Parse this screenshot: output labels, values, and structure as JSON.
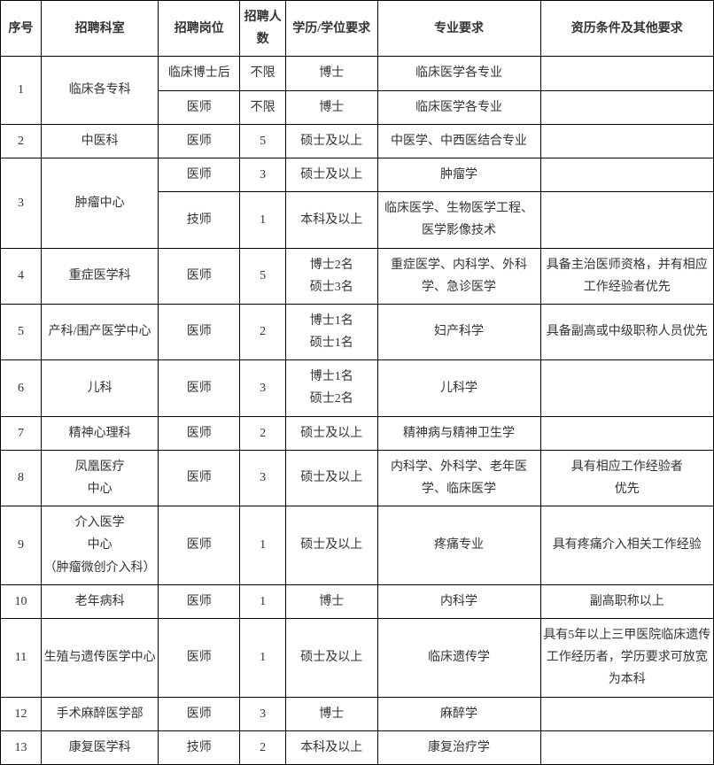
{
  "headers": {
    "seq": "序号",
    "dept": "招聘科室",
    "post": "招聘岗位",
    "num": "招聘人数",
    "edu": "学历/学位要求",
    "major": "专业要求",
    "other": "资历条件及其他要求"
  },
  "r1": {
    "seq": "1",
    "dept": "临床各专科",
    "post": "临床博士后",
    "num": "不限",
    "edu": "博士",
    "major": "临床医学各专业",
    "other": ""
  },
  "r1b": {
    "post": "医师",
    "num": "不限",
    "edu": "博士",
    "major": "临床医学各专业",
    "other": ""
  },
  "r2": {
    "seq": "2",
    "dept": "中医科",
    "post": "医师",
    "num": "5",
    "edu": "硕士及以上",
    "major": "中医学、中西医结合专业",
    "other": ""
  },
  "r3": {
    "seq": "3",
    "dept": "肿瘤中心",
    "post": "医师",
    "num": "3",
    "edu": "硕士及以上",
    "major": "肿瘤学",
    "other": ""
  },
  "r3b": {
    "post": "技师",
    "num": "1",
    "edu": "本科及以上",
    "major": "临床医学、生物医学工程、医学影像技术",
    "other": ""
  },
  "r4": {
    "seq": "4",
    "dept": "重症医学科",
    "post": "医师",
    "num": "5",
    "edu": "博士2名\n硕士3名",
    "major": "重症医学、内科学、外科学、急诊医学",
    "other": "具备主治医师资格，并有相应工作经验者优先"
  },
  "r5": {
    "seq": "5",
    "dept": "产科/围产医学中心",
    "post": "医师",
    "num": "2",
    "edu": "博士1名\n硕士1名",
    "major": "妇产科学",
    "other": "具备副高或中级职称人员优先"
  },
  "r6": {
    "seq": "6",
    "dept": "儿科",
    "post": "医师",
    "num": "3",
    "edu": "博士1名\n硕士2名",
    "major": "儿科学",
    "other": ""
  },
  "r7": {
    "seq": "7",
    "dept": "精神心理科",
    "post": "医师",
    "num": "2",
    "edu": "硕士及以上",
    "major": "精神病与精神卫生学",
    "other": ""
  },
  "r8": {
    "seq": "8",
    "dept": "凤凰医疗\n中心",
    "post": "医师",
    "num": "3",
    "edu": "硕士及以上",
    "major": "内科学、外科学、老年医学、临床医学",
    "other": "具有相应工作经验者\n优先"
  },
  "r9": {
    "seq": "9",
    "dept": "介入医学\n中心\n（肿瘤微创介入科）",
    "post": "医师",
    "num": "1",
    "edu": "硕士及以上",
    "major": "疼痛专业",
    "other": "具有疼痛介入相关工作经验"
  },
  "r10": {
    "seq": "10",
    "dept": "老年病科",
    "post": "医师",
    "num": "1",
    "edu": "博士",
    "major": "内科学",
    "other": "副高职称以上"
  },
  "r11": {
    "seq": "11",
    "dept": "生殖与遗传医学中心",
    "post": "医师",
    "num": "1",
    "edu": "硕士及以上",
    "major": "临床遗传学",
    "other": "具有5年以上三甲医院临床遗传工作经历者，学历要求可放宽为本科"
  },
  "r12": {
    "seq": "12",
    "dept": "手术麻醉医学部",
    "post": "医师",
    "num": "3",
    "edu": "博士",
    "major": "麻醉学",
    "other": ""
  },
  "r13": {
    "seq": "13",
    "dept": "康复医学科",
    "post": "技师",
    "num": "2",
    "edu": "本科及以上",
    "major": "康复治疗学",
    "other": ""
  }
}
